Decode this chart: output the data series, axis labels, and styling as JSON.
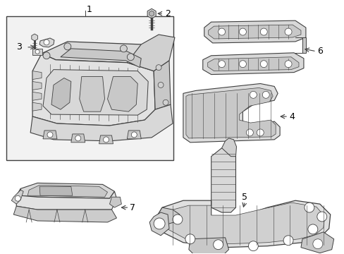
{
  "bg_color": "#ffffff",
  "line_color": "#404040",
  "label_color": "#000000",
  "figsize": [
    4.89,
    3.6
  ],
  "dpi": 100,
  "fill_light": "#e8e8e8",
  "fill_mid": "#d0d0d0",
  "fill_dark": "#b8b8b8"
}
